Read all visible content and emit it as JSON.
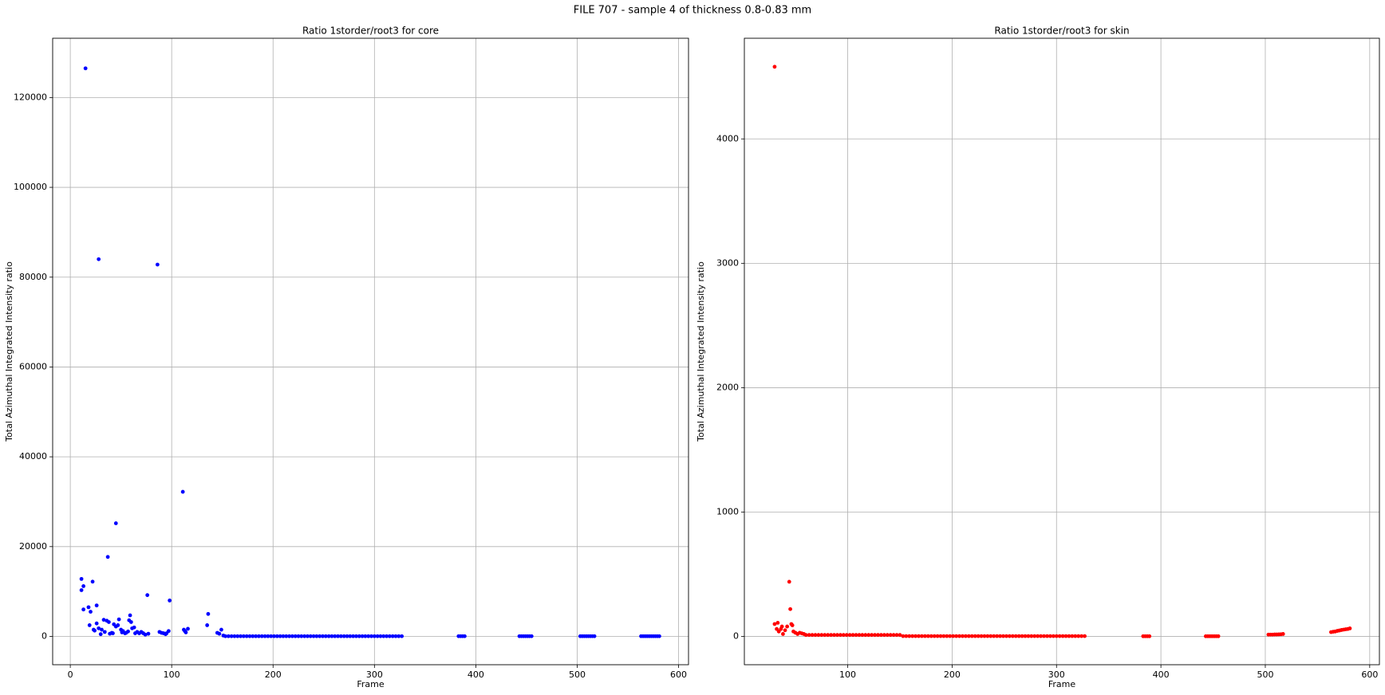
{
  "title": "FILE 707 - sample 4 of thickness 0.8-0.83 mm",
  "chart_data": [
    {
      "type": "scatter",
      "title": "Ratio 1storder/root3 for core",
      "xlabel": "Frame",
      "ylabel": "Total Azimuthal Integrated Intensity ratio",
      "xlim": [
        -17.4,
        609.8
      ],
      "ylim": [
        -6300,
        133200
      ],
      "xticks": [
        0,
        100,
        200,
        300,
        400,
        500,
        600
      ],
      "yticks": [
        0,
        20000,
        40000,
        60000,
        80000,
        100000,
        120000
      ],
      "grid": true,
      "series": [
        {
          "color": "#0000ff",
          "x": [
            11,
            11,
            13,
            13,
            15,
            18,
            19,
            20,
            22,
            23,
            24,
            26,
            26,
            28,
            28,
            30,
            31,
            33,
            34,
            36,
            37,
            38,
            39,
            41,
            42,
            43,
            45,
            45,
            47,
            48,
            50,
            51,
            52,
            54,
            55,
            57,
            58,
            59,
            60,
            61,
            63,
            64,
            66,
            68,
            70,
            72,
            74,
            76,
            77,
            86,
            88,
            90,
            92,
            94,
            95,
            97,
            98,
            111,
            112,
            113,
            114,
            116,
            135,
            136,
            145,
            147,
            149,
            151,
            153,
            156,
            159,
            162,
            165,
            168,
            171,
            174,
            177,
            180,
            183,
            186,
            189,
            192,
            195,
            198,
            201,
            204,
            207,
            210,
            213,
            216,
            219,
            222,
            225,
            228,
            231,
            234,
            237,
            240,
            243,
            246,
            249,
            252,
            255,
            258,
            261,
            264,
            267,
            270,
            273,
            276,
            279,
            282,
            285,
            288,
            291,
            294,
            297,
            300,
            303,
            306,
            309,
            312,
            315,
            318,
            321,
            324,
            327,
            383,
            385,
            387,
            389,
            443,
            445,
            447,
            449,
            451,
            453,
            455,
            503,
            505,
            507,
            509,
            511,
            513,
            515,
            517,
            563,
            565,
            567,
            569,
            571,
            573,
            575,
            577,
            579,
            581
          ],
          "values": [
            12800,
            10300,
            11200,
            6000,
            126500,
            6500,
            2500,
            5500,
            12200,
            1500,
            1300,
            6900,
            2900,
            84000,
            1800,
            500,
            1500,
            3700,
            1000,
            3500,
            17700,
            3200,
            600,
            800,
            700,
            2700,
            25200,
            2200,
            2500,
            3800,
            1500,
            900,
            1200,
            700,
            800,
            1100,
            3600,
            4700,
            3200,
            1800,
            2000,
            700,
            1000,
            700,
            1000,
            700,
            400,
            9200,
            600,
            82800,
            1000,
            800,
            700,
            500,
            700,
            1200,
            8000,
            32200,
            1500,
            1200,
            900,
            1700,
            2500,
            5000,
            800,
            600,
            1500,
            200,
            50,
            50,
            50,
            50,
            50,
            50,
            50,
            50,
            50,
            50,
            50,
            50,
            50,
            50,
            50,
            50,
            50,
            50,
            50,
            50,
            50,
            50,
            50,
            50,
            50,
            50,
            50,
            50,
            50,
            50,
            50,
            50,
            50,
            50,
            50,
            50,
            50,
            50,
            50,
            50,
            50,
            50,
            50,
            50,
            50,
            50,
            50,
            50,
            50,
            50,
            50,
            50,
            50,
            50,
            50,
            50,
            50,
            50,
            50,
            50,
            50,
            50,
            50,
            50,
            50,
            50,
            50,
            50,
            50,
            50,
            50,
            50,
            50,
            50,
            50,
            50,
            50,
            50,
            50,
            50,
            50,
            50,
            50,
            50,
            50,
            50,
            50,
            50
          ]
        }
      ]
    },
    {
      "type": "scatter",
      "title": "Ratio 1storder/root3 for skin",
      "xlabel": "Frame",
      "ylabel": "Total Azimuthal Integrated Intensity ratio",
      "xlim": [
        1,
        609.3
      ],
      "ylim": [
        -227,
        4809
      ],
      "xticks": [
        100,
        200,
        300,
        400,
        500,
        600
      ],
      "yticks": [
        0,
        1000,
        2000,
        3000,
        4000
      ],
      "grid": true,
      "series": [
        {
          "color": "#ff0000",
          "x": [
            30,
            30,
            32,
            33,
            34,
            36,
            37,
            38,
            40,
            42,
            44,
            45,
            46,
            47,
            48,
            50,
            52,
            54,
            56,
            58,
            60,
            63,
            66,
            69,
            72,
            75,
            78,
            81,
            84,
            87,
            90,
            93,
            96,
            99,
            102,
            105,
            108,
            111,
            114,
            117,
            120,
            123,
            126,
            129,
            132,
            135,
            138,
            141,
            144,
            147,
            150,
            153,
            156,
            159,
            162,
            165,
            168,
            171,
            174,
            177,
            180,
            183,
            186,
            189,
            192,
            195,
            198,
            201,
            204,
            207,
            210,
            213,
            216,
            219,
            222,
            225,
            228,
            231,
            234,
            237,
            240,
            243,
            246,
            249,
            252,
            255,
            258,
            261,
            264,
            267,
            270,
            273,
            276,
            279,
            282,
            285,
            288,
            291,
            294,
            297,
            300,
            303,
            306,
            309,
            312,
            315,
            318,
            321,
            324,
            327,
            383,
            385,
            387,
            389,
            443,
            445,
            447,
            449,
            451,
            453,
            455,
            503,
            505,
            507,
            509,
            511,
            513,
            515,
            517,
            563,
            565,
            567,
            569,
            571,
            573,
            575,
            577,
            579,
            581
          ],
          "values": [
            4580,
            100,
            60,
            110,
            40,
            60,
            80,
            20,
            50,
            80,
            440,
            220,
            100,
            90,
            40,
            30,
            20,
            30,
            25,
            20,
            12,
            12,
            12,
            12,
            12,
            12,
            12,
            12,
            12,
            12,
            12,
            12,
            12,
            12,
            12,
            12,
            12,
            12,
            12,
            12,
            12,
            12,
            12,
            12,
            12,
            12,
            12,
            12,
            12,
            12,
            12,
            3,
            3,
            3,
            3,
            3,
            3,
            3,
            3,
            3,
            3,
            3,
            3,
            3,
            3,
            3,
            3,
            3,
            3,
            3,
            3,
            3,
            3,
            3,
            3,
            3,
            3,
            3,
            3,
            3,
            3,
            3,
            3,
            3,
            3,
            3,
            3,
            3,
            3,
            3,
            3,
            3,
            3,
            3,
            3,
            3,
            3,
            3,
            3,
            3,
            3,
            3,
            3,
            3,
            3,
            3,
            3,
            3,
            3,
            3,
            2,
            2,
            2,
            2,
            2,
            2,
            2,
            2,
            2,
            2,
            2,
            15,
            15,
            15,
            16,
            16,
            17,
            18,
            20,
            35,
            38,
            40,
            45,
            48,
            52,
            55,
            58,
            60,
            65
          ]
        }
      ]
    }
  ]
}
